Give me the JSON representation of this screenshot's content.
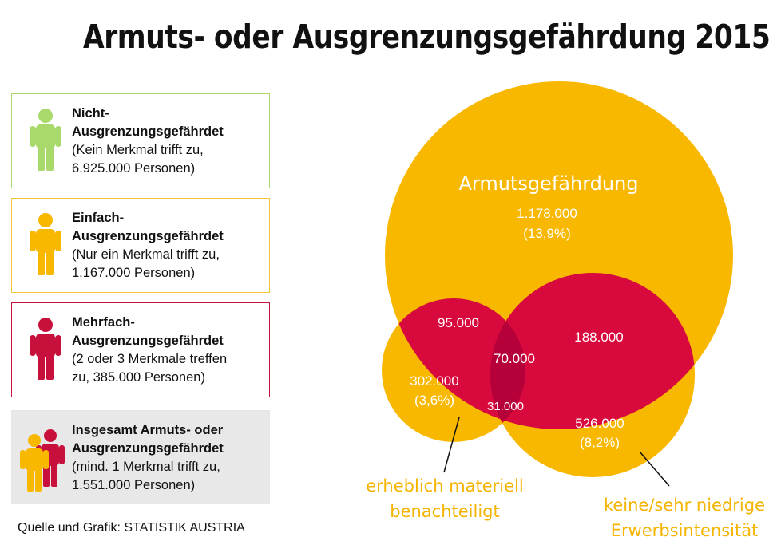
{
  "title": "Armuts- oder Ausgrenzungsgefährdung 2015",
  "colors": {
    "green": "#a9d96b",
    "yellow": "#f8b800",
    "red": "#d8093d",
    "dark_red": "#b5003a",
    "grey": "#e8e8e8"
  },
  "legend": [
    {
      "heading": [
        "Nicht-",
        "Ausgrenzungsgefährdet"
      ],
      "detail": [
        "(Kein Merkmal trifft zu,",
        "6.925.000 Personen)"
      ],
      "icon": "person-icon-green"
    },
    {
      "heading": [
        "Einfach-",
        "Ausgrenzungsgefährdet"
      ],
      "detail": [
        "(Nur ein Merkmal trifft zu,",
        "1.167.000 Personen)"
      ],
      "icon": "person-icon-yellow"
    },
    {
      "heading": [
        "Mehrfach-",
        "Ausgrenzungsgefährdet"
      ],
      "detail": [
        "(2 oder 3 Merkmale treffen",
        "zu, 385.000 Personen)"
      ],
      "icon": "person-icon-red"
    },
    {
      "heading": [
        "Insgesamt Armuts- oder",
        "Ausgrenzungsgefährdet"
      ],
      "detail": [
        "(mind. 1  Merkmal trifft zu,",
        "1.551.000 Personen)"
      ],
      "icon": "two-persons-icon"
    }
  ],
  "venn": {
    "armut_label": "Armutsgefährdung",
    "armut_value": "1.178.000",
    "armut_pct": "(13,9%)",
    "material_value": "302.000",
    "material_pct": "(3,6%)",
    "erwerb_value": "526.000",
    "erwerb_pct": "(8,2%)",
    "armut_material": "95.000",
    "armut_erwerb": "188.000",
    "all_three": "70.000",
    "material_erwerb": "31.000",
    "material_label": [
      "erheblich materiell",
      "benachteiligt"
    ],
    "erwerb_label": [
      "keine/sehr niedrige",
      "Erwerbsintensität"
    ]
  },
  "source": "Quelle und Grafik: STATISTIK AUSTRIA"
}
